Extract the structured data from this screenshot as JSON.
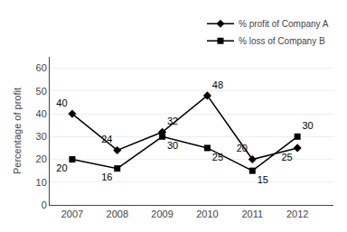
{
  "chart_data": {
    "type": "line",
    "x": [
      2007,
      2008,
      2009,
      2010,
      2011,
      2012
    ],
    "series": [
      {
        "name": "% profit of Company A",
        "color": "#000000",
        "marker": "diamond",
        "values": [
          40,
          24,
          32,
          48,
          20,
          25
        ]
      },
      {
        "name": "% loss of Company B",
        "color": "#000000",
        "marker": "square",
        "values": [
          20,
          16,
          30,
          25,
          15,
          30
        ]
      }
    ],
    "ylabel": "Percentage of profit",
    "xlim": [
      2006.5,
      2012.8
    ],
    "xticks": [
      2007,
      2008,
      2009,
      2010,
      2011,
      2012
    ],
    "ylim": [
      0,
      65
    ],
    "yticks": [
      0,
      10,
      20,
      30,
      40,
      50,
      60
    ],
    "grid": true,
    "legend": "top right",
    "data_labels": true
  }
}
